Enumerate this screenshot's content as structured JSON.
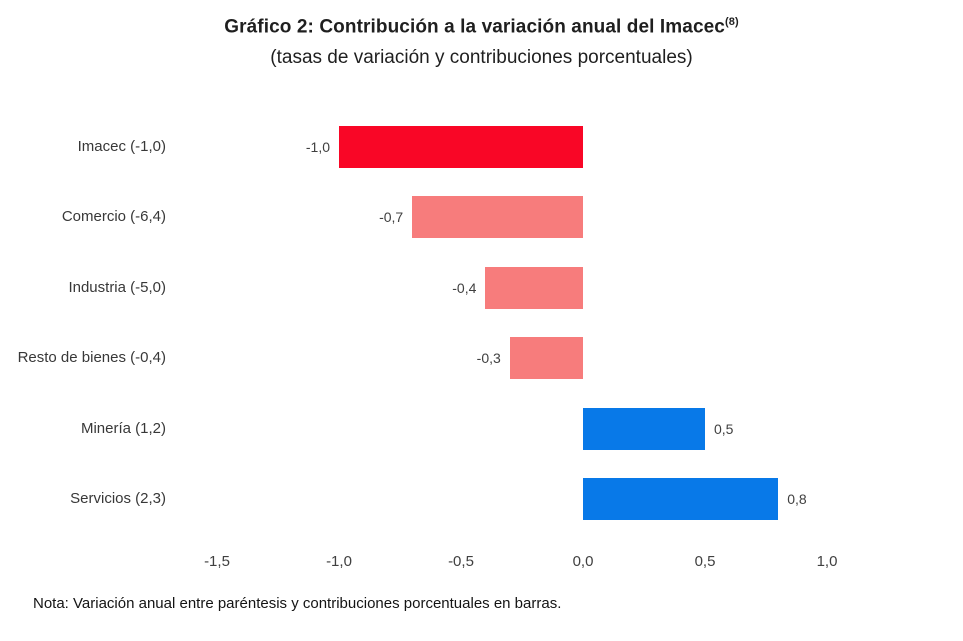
{
  "header": {
    "title": "Gráfico 2: Contribución a la variación anual del Imacec",
    "title_superscript": "(8)",
    "subtitle": "(tasas de variación y contribuciones porcentuales)"
  },
  "chart_data": {
    "type": "bar",
    "orientation": "horizontal",
    "title": "Gráfico 2: Contribución a la variación anual del Imacec(8)",
    "subtitle": "(tasas de variación y contribuciones porcentuales)",
    "categories": [
      "Imacec (-1,0)",
      "Comercio (-6,4)",
      "Industria (-5,0)",
      "Resto de bienes (-0,4)",
      "Minería (1,2)",
      "Servicios (2,3)"
    ],
    "values": [
      -1.0,
      -0.7,
      -0.4,
      -0.3,
      0.5,
      0.8
    ],
    "value_labels": [
      "-1,0",
      "-0,7",
      "-0,4",
      "-0,3",
      "0,5",
      "0,8"
    ],
    "bar_colors": [
      "#F90626",
      "#F77C7C",
      "#F77C7C",
      "#F77C7C",
      "#0879E8",
      "#0879E8"
    ],
    "category_keys": [
      "imacec",
      "comercio",
      "industria",
      "resto-de-bienes",
      "mineria",
      "servicios"
    ],
    "x_ticks": [
      "-1,5",
      "-1,0",
      "-0,5",
      "0,0",
      "0,5",
      "1,0"
    ],
    "x_tick_values": [
      -1.5,
      -1.0,
      -0.5,
      0.0,
      0.5,
      1.0
    ],
    "xlim": [
      -1.75,
      1.25
    ],
    "grid": false,
    "legend": "none",
    "xlabel": "",
    "ylabel": ""
  },
  "colors": {
    "imacec_red": "#F90626",
    "negative_salmon": "#F77C7C",
    "positive_blue": "#0879E8"
  },
  "note": "Nota: Variación anual entre paréntesis y contribuciones porcentuales en barras."
}
